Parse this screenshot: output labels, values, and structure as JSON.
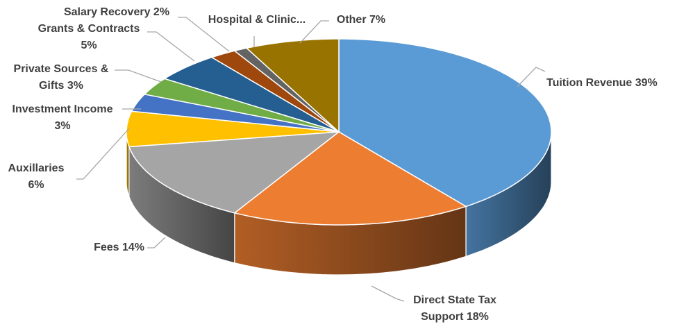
{
  "chart_data": {
    "type": "pie",
    "style": "3d",
    "start": "12 o'clock, clockwise",
    "legend": "none (labels with leader lines)",
    "slices": [
      {
        "name": "Tuition Revenue",
        "value": 39,
        "lines": [
          "Tuition Revenue 39%"
        ],
        "color": "#5b9bd5"
      },
      {
        "name": "Direct State Tax Support",
        "value": 18,
        "lines": [
          "Direct State Tax",
          "Support 18%"
        ],
        "color": "#ed7d31"
      },
      {
        "name": "Fees",
        "value": 14,
        "lines": [
          "Fees 14%"
        ],
        "color": "#a5a5a5"
      },
      {
        "name": "Auxillaries",
        "value": 6,
        "lines": [
          "Auxillaries",
          "6%"
        ],
        "color": "#ffc000"
      },
      {
        "name": "Investment Income",
        "value": 3,
        "lines": [
          "Investment Income",
          "3%"
        ],
        "color": "#4472c4"
      },
      {
        "name": "Private Sources & Gifts",
        "value": 3,
        "lines": [
          "Private Sources &",
          "Gifts 3%"
        ],
        "color": "#70ad47"
      },
      {
        "name": "Grants & Contracts",
        "value": 5,
        "lines": [
          "Grants & Contracts",
          "5%"
        ],
        "color": "#255e91"
      },
      {
        "name": "Salary Recovery",
        "value": 2,
        "lines": [
          "Salary Recovery 2%"
        ],
        "color": "#9e480e"
      },
      {
        "name": "Hospital & Clinic...",
        "value": 1,
        "lines": [
          "Hospital & Clinic..."
        ],
        "color": "#636363"
      },
      {
        "name": "Other",
        "value": 7,
        "lines": [
          "Other 7%"
        ],
        "color": "#997300"
      }
    ]
  }
}
